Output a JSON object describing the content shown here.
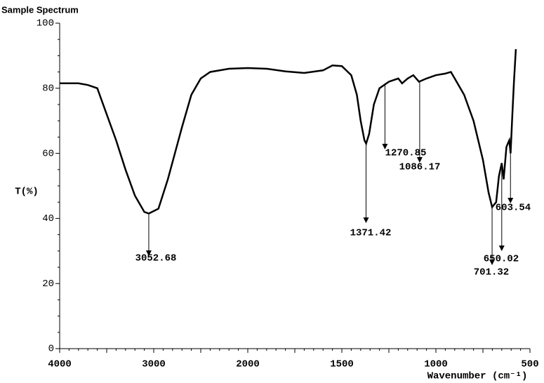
{
  "chart_data": {
    "type": "line",
    "title": "Sample Spectrum",
    "y_label": "T(%)",
    "x_label": "Wavenumber (cm⁻¹)",
    "xlim": [
      4000,
      500
    ],
    "x_scale_break": 2000,
    "x_scale_ratio": 2,
    "xticks": [
      4000,
      3000,
      2000,
      1500,
      1000,
      500
    ],
    "ylim": [
      0,
      100
    ],
    "yticks": [
      0,
      20,
      40,
      60,
      80,
      100
    ],
    "series": [
      {
        "color": "#000000",
        "x": [
          4000,
          3800,
          3700,
          3600,
          3500,
          3400,
          3300,
          3200,
          3100,
          3052,
          2950,
          2850,
          2700,
          2600,
          2500,
          2400,
          2200,
          2000,
          1900,
          1800,
          1700,
          1600,
          1550,
          1500,
          1450,
          1420,
          1400,
          1380,
          1371,
          1355,
          1330,
          1300,
          1250,
          1200,
          1180,
          1150,
          1120,
          1090,
          1050,
          1000,
          950,
          920,
          900,
          850,
          800,
          750,
          720,
          701,
          680,
          665,
          650,
          640,
          625,
          610,
          603,
          595,
          585,
          575
        ],
        "values": [
          81.5,
          81.5,
          81,
          80,
          72,
          64,
          55,
          47,
          42,
          41.5,
          43,
          52,
          68,
          78,
          83,
          85,
          86,
          86.2,
          86,
          85.2,
          84.7,
          85.5,
          87,
          86.8,
          84,
          78,
          70,
          64,
          63,
          66,
          75,
          80,
          82,
          83,
          81.5,
          83,
          84,
          82,
          83,
          84,
          84.5,
          85,
          83,
          78,
          70,
          58,
          48,
          43.5,
          45,
          53,
          57,
          52,
          62,
          64,
          60,
          70,
          82,
          92
        ]
      }
    ],
    "annotations": [
      {
        "text": "3052.68",
        "x": 3052.68
      },
      {
        "text": "1371.42",
        "x": 1371.42
      },
      {
        "text": "1270.85",
        "x": 1270.85
      },
      {
        "text": "1086.17",
        "x": 1086.17
      },
      {
        "text": "603.54",
        "x": 603.54
      },
      {
        "text": "650.02",
        "x": 650.02
      },
      {
        "text": "701.32",
        "x": 701.32
      }
    ]
  }
}
